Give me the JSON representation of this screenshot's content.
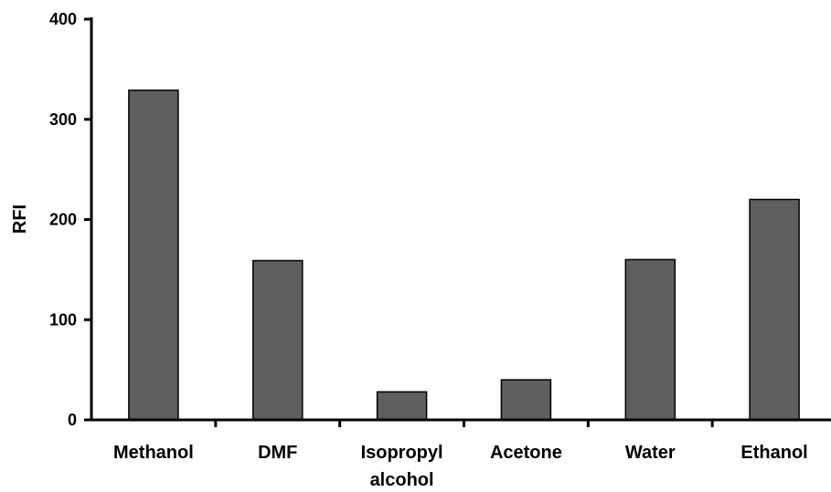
{
  "chart_data": {
    "type": "bar",
    "categories": [
      "Methanol",
      "DMF",
      "Isopropyl alcohol",
      "Acetone",
      "Water",
      "Ethanol"
    ],
    "category_label_lines": [
      [
        "Methanol"
      ],
      [
        "DMF"
      ],
      [
        "Isopropyl",
        "alcohol"
      ],
      [
        "Acetone"
      ],
      [
        "Water"
      ],
      [
        "Ethanol"
      ]
    ],
    "values": [
      329,
      159,
      28,
      40,
      160,
      220
    ],
    "ylabel": "RFI",
    "xlabel": "",
    "ylim": [
      0,
      400
    ],
    "yticks": [
      0,
      100,
      200,
      300,
      400
    ],
    "grid": false,
    "legend": "none",
    "bar_color": "#5f5f5f",
    "bar_edge_color": "#000000"
  }
}
